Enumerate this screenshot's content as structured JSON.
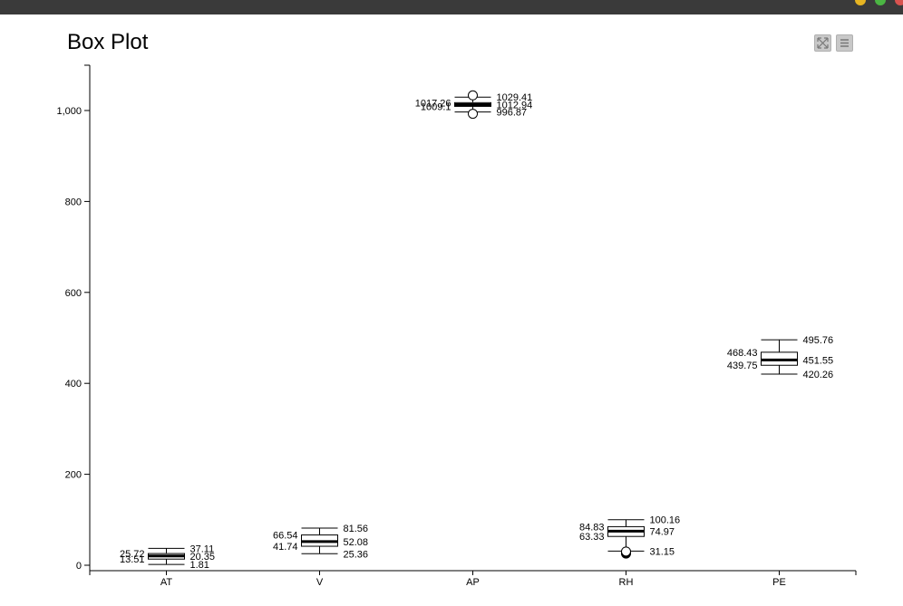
{
  "chart_data": {
    "type": "box",
    "title": "Box Plot",
    "xlabel": "",
    "ylabel": "",
    "ylim": [
      0,
      1100
    ],
    "y_ticks": [
      0,
      200,
      400,
      600,
      800,
      1000
    ],
    "y_tick_labels": [
      "0",
      "200",
      "400",
      "600",
      "800",
      "1,000"
    ],
    "categories": [
      "AT",
      "V",
      "AP",
      "RH",
      "PE"
    ],
    "boxes": [
      {
        "name": "AT",
        "whisker_low": 1.81,
        "q1": 13.51,
        "median": 20.35,
        "q3": 25.72,
        "whisker_high": 37.11,
        "label_low": "1.81",
        "label_q1": "13.51",
        "label_median": "20.35",
        "label_q3": "25.72",
        "label_high": "37.11",
        "outliers": []
      },
      {
        "name": "V",
        "whisker_low": 25.36,
        "q1": 41.74,
        "median": 52.08,
        "q3": 66.54,
        "whisker_high": 81.56,
        "label_low": "25.36",
        "label_q1": "41.74",
        "label_median": "52.08",
        "label_q3": "66.54",
        "label_high": "81.56",
        "outliers": []
      },
      {
        "name": "AP",
        "whisker_low": 996.87,
        "q1": 1009.1,
        "median": 1012.94,
        "q3": 1017.26,
        "whisker_high": 1029.41,
        "label_low": "996.87",
        "label_q1": "1009.1",
        "label_median": "1012.94",
        "label_q3": "1017.26",
        "label_high": "1029.41",
        "outliers": [
          992.89,
          1033.3
        ]
      },
      {
        "name": "RH",
        "whisker_low": 31.15,
        "q1": 63.33,
        "median": 74.97,
        "q3": 84.83,
        "whisker_high": 100.16,
        "label_low": "31.15",
        "label_q1": "63.33",
        "label_median": "74.97",
        "label_q3": "84.83",
        "label_high": "100.16",
        "outliers": [
          25.56,
          27.5,
          29.0,
          30.2
        ]
      },
      {
        "name": "PE",
        "whisker_low": 420.26,
        "q1": 439.75,
        "median": 451.55,
        "q3": 468.43,
        "whisker_high": 495.76,
        "label_low": "420.26",
        "label_q1": "439.75",
        "label_median": "451.55",
        "label_q3": "468.43",
        "label_high": "495.76",
        "outliers": []
      }
    ],
    "grid": false,
    "legend": "none"
  },
  "toolbar": {
    "expand_icon": "expand-icon",
    "menu_icon": "hamburger-menu-icon"
  },
  "colors": {
    "topbar": "#3a3a3a",
    "box_stroke": "#000000",
    "box_fill": "#ffffff",
    "button": "#c8c8c8"
  }
}
